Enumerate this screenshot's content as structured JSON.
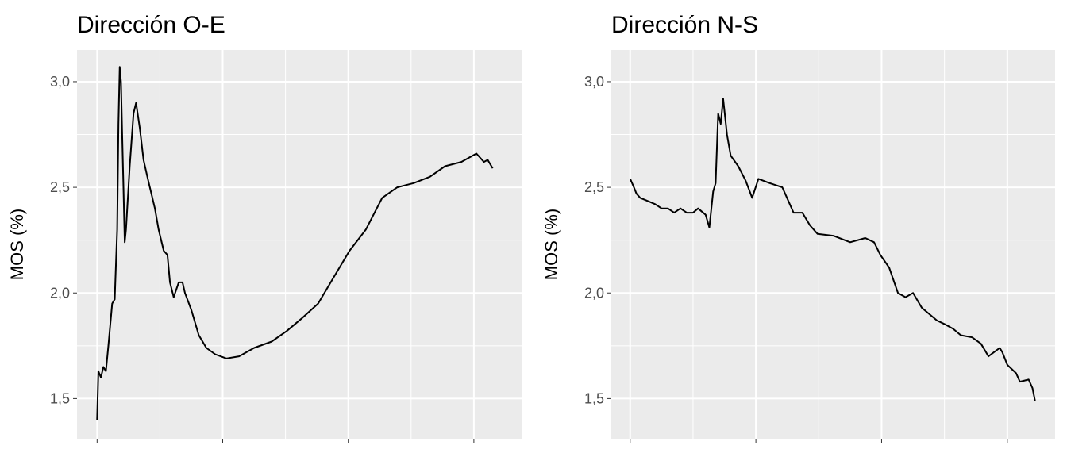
{
  "chart_data": [
    {
      "type": "line",
      "title": "Dirección O-E",
      "y_label": "MOS (%)",
      "color": "#000000",
      "grid": true,
      "x": [
        0,
        1,
        3,
        5,
        7,
        9,
        12,
        14,
        16,
        17,
        18,
        19,
        20,
        21,
        22,
        23,
        26,
        29,
        31,
        34,
        37,
        40,
        46,
        49,
        53,
        56,
        58,
        61,
        65,
        68,
        70,
        75,
        81,
        87,
        94,
        103,
        113,
        125,
        139,
        151,
        163,
        176,
        189,
        201,
        214,
        227,
        239,
        252,
        265,
        277,
        290,
        302,
        308,
        311,
        315
      ],
      "values": [
        1.4,
        1.63,
        1.6,
        1.65,
        1.63,
        1.75,
        1.95,
        1.97,
        2.3,
        2.8,
        3.07,
        3.0,
        2.75,
        2.5,
        2.24,
        2.3,
        2.6,
        2.85,
        2.9,
        2.78,
        2.63,
        2.55,
        2.4,
        2.3,
        2.2,
        2.18,
        2.05,
        1.98,
        2.05,
        2.05,
        2.0,
        1.92,
        1.8,
        1.74,
        1.71,
        1.69,
        1.7,
        1.74,
        1.77,
        1.82,
        1.88,
        1.95,
        2.08,
        2.2,
        2.3,
        2.45,
        2.5,
        2.52,
        2.55,
        2.6,
        2.62,
        2.66,
        2.62,
        2.63,
        2.59
      ],
      "xlim": [
        -16,
        338
      ],
      "xticks": [
        0,
        100,
        200,
        300
      ],
      "ylim": [
        1.31,
        3.15
      ],
      "yticks": [
        {
          "value": 1.5,
          "label": "1,5"
        },
        {
          "value": 2,
          "label": "2,0"
        },
        {
          "value": 2.5,
          "label": "2,5"
        },
        {
          "value": 3,
          "label": "3,0"
        }
      ]
    },
    {
      "type": "line",
      "title": "Dirección N-S",
      "y_label": "MOS (%)",
      "color": "#000000",
      "grid": true,
      "x": [
        0,
        3,
        5,
        8,
        12,
        16,
        20,
        25,
        30,
        35,
        40,
        45,
        50,
        54,
        60,
        63,
        66,
        68,
        70,
        72,
        74,
        77,
        80,
        86,
        92,
        97,
        102,
        111,
        121,
        130,
        137,
        143,
        149,
        162,
        175,
        187,
        194,
        199,
        206,
        213,
        219,
        225,
        232,
        238,
        244,
        251,
        257,
        263,
        272,
        279,
        285,
        294,
        296,
        300,
        307,
        310,
        317,
        320,
        322
      ],
      "values": [
        2.54,
        2.5,
        2.47,
        2.45,
        2.44,
        2.43,
        2.42,
        2.4,
        2.4,
        2.38,
        2.4,
        2.38,
        2.38,
        2.4,
        2.37,
        2.31,
        2.48,
        2.52,
        2.85,
        2.8,
        2.92,
        2.75,
        2.65,
        2.6,
        2.53,
        2.45,
        2.54,
        2.52,
        2.5,
        2.38,
        2.38,
        2.32,
        2.28,
        2.27,
        2.24,
        2.26,
        2.24,
        2.18,
        2.12,
        2.0,
        1.98,
        2.0,
        1.93,
        1.9,
        1.87,
        1.85,
        1.83,
        1.8,
        1.79,
        1.76,
        1.7,
        1.74,
        1.72,
        1.66,
        1.62,
        1.58,
        1.59,
        1.55,
        1.49
      ],
      "xlim": [
        -15,
        338
      ],
      "xticks": [
        0,
        100,
        200,
        300
      ],
      "ylim": [
        1.31,
        3.15
      ],
      "yticks": [
        {
          "value": 1.5,
          "label": "1,5"
        },
        {
          "value": 2,
          "label": "2,0"
        },
        {
          "value": 2.5,
          "label": "2,5"
        },
        {
          "value": 3,
          "label": "3,0"
        }
      ]
    }
  ]
}
